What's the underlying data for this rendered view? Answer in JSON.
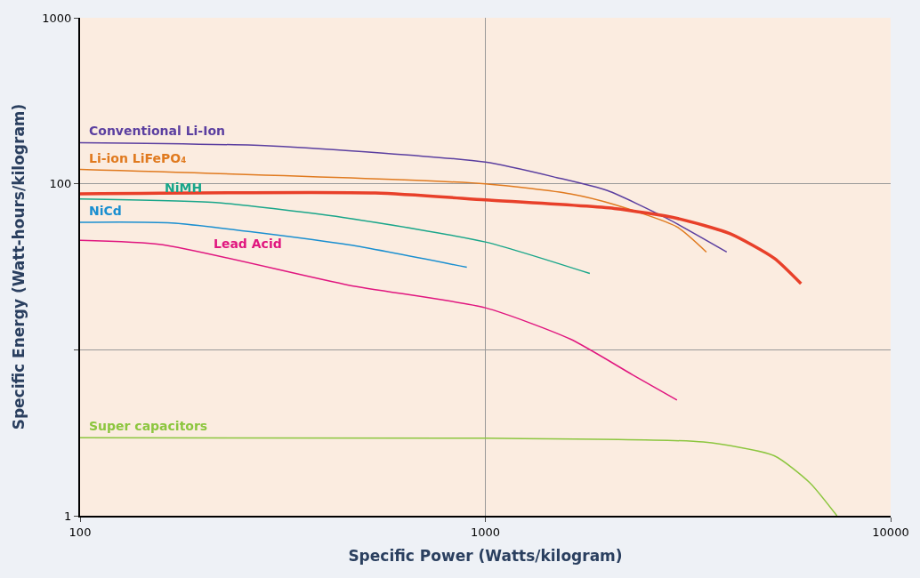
{
  "chart_data": {
    "type": "line",
    "xlabel": "Specific Power (Watts/kilogram)",
    "ylabel": "Specific Energy (Watt-hours/kilogram)",
    "log": "xy",
    "xlim": [
      100,
      10000
    ],
    "ylim": [
      1,
      1000
    ],
    "xticks": [
      100,
      1000,
      10000
    ],
    "yticks": [
      1,
      {
        "value": 10,
        "label": null
      },
      100,
      1000
    ],
    "grid": true,
    "legend": false,
    "marker": "none",
    "line_style": "solid",
    "series": [
      {
        "name": "Conventional Li-Ion",
        "color": "#5b3fa0",
        "x": [
          100,
          300,
          1000,
          1500,
          2000,
          2800,
          3940
        ],
        "values": [
          177,
          169,
          135,
          109,
          91,
          62,
          38.8
        ]
      },
      {
        "name": "Li-ion LiFePO₄",
        "color": "#e07a1f",
        "x": [
          100,
          1000,
          1620,
          2080,
          2970,
          3510
        ],
        "values": [
          122,
          100,
          87,
          75,
          55,
          38.8
        ]
      },
      {
        "color": "#e8402a",
        "x": [
          100,
          535,
          1000,
          2080,
          2970,
          4020,
          5160,
          6010
        ],
        "values": [
          87,
          88,
          80,
          71,
          62,
          50,
          35.6,
          25
        ]
      },
      {
        "name": "NiCd",
        "color": "#1a8fd0",
        "x": [
          100,
          168,
          460,
          900
        ],
        "values": [
          58.6,
          58,
          42.9,
          31.4
        ]
      },
      {
        "name": "NiMH",
        "color": "#1aa68a",
        "x": [
          100,
          216,
          460,
          1000,
          1810
        ],
        "values": [
          81,
          77,
          62,
          44.6,
          28.8
        ]
      },
      {
        "name": "Lead Acid",
        "color": "#e0167f",
        "x": [
          100,
          160,
          460,
          1000,
          1620,
          2310,
          2970
        ],
        "values": [
          45.6,
          42.9,
          24.5,
          17.9,
          11.6,
          7.06,
          4.98
        ]
      },
      {
        "name": "Super capacitors",
        "color": "#8cc63f",
        "x": [
          100,
          1000,
          3450,
          5160,
          6320,
          7370
        ],
        "values": [
          2.95,
          2.93,
          2.78,
          2.3,
          1.58,
          1
        ]
      }
    ]
  }
}
